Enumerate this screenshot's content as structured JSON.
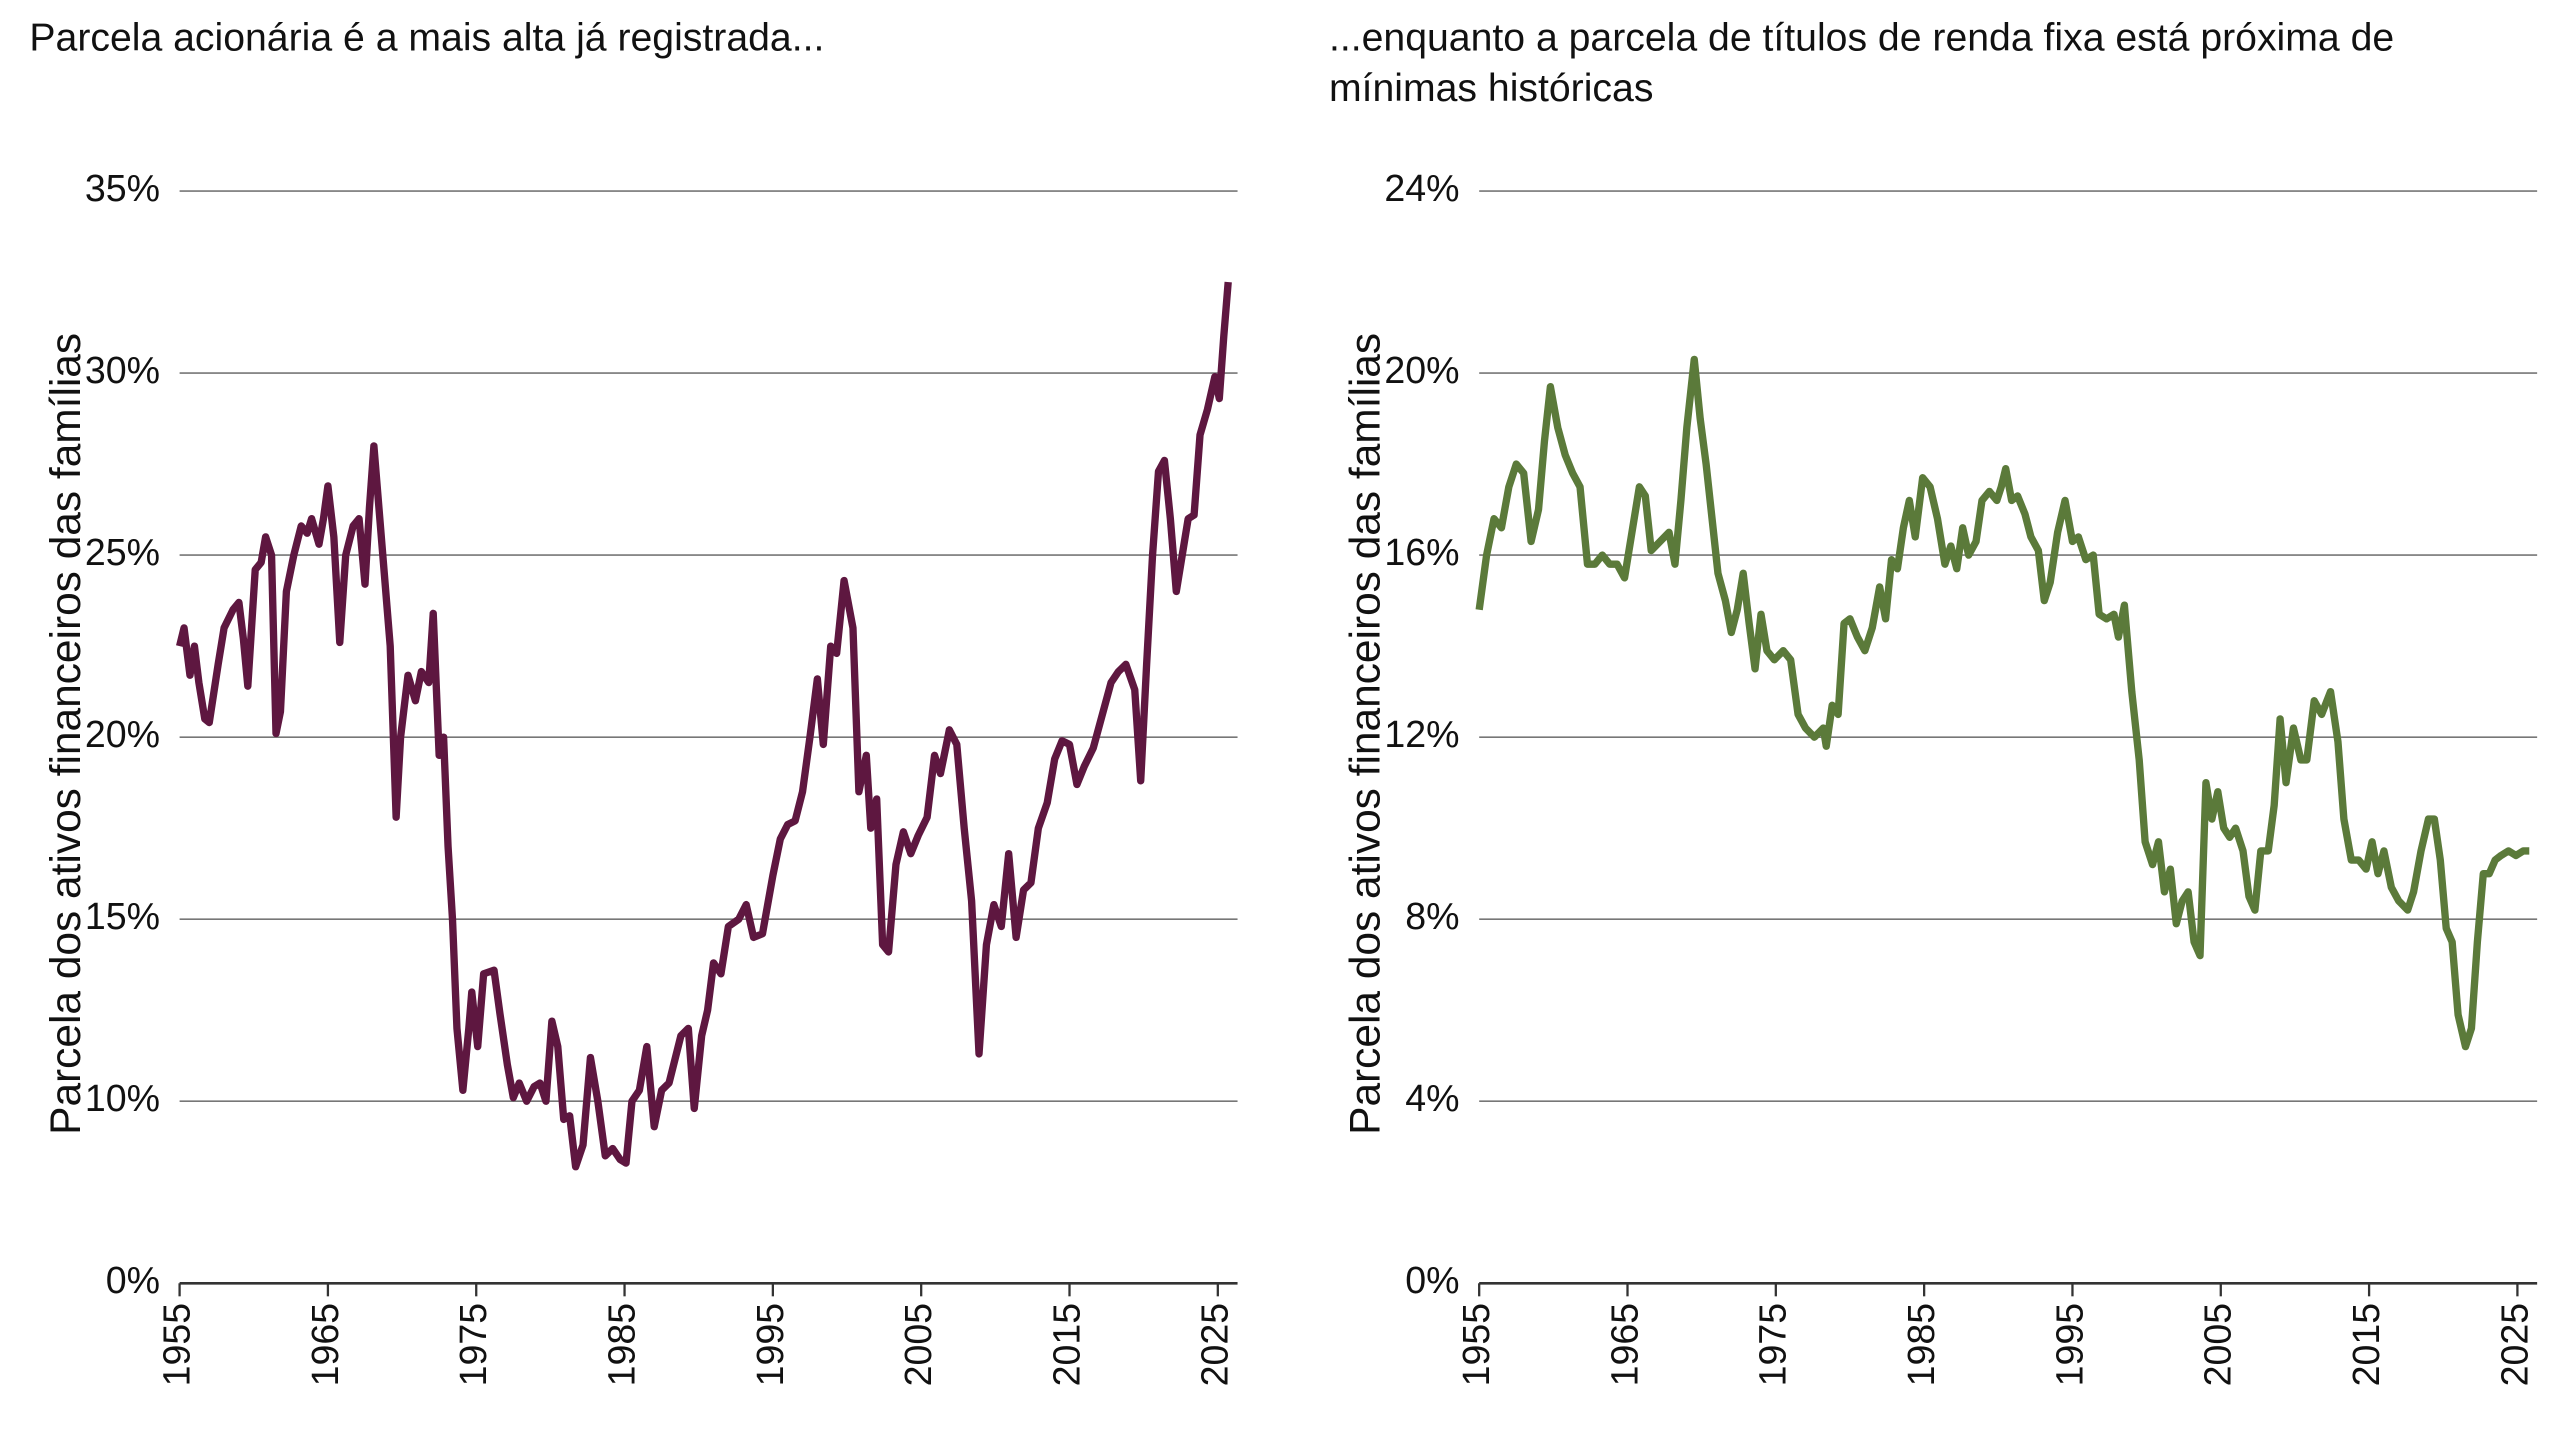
{
  "chart_data": [
    {
      "type": "line",
      "title": "Parcela acionária é a mais alta já registrada...",
      "y_label": "Parcela dos ativos financeiros das famílias",
      "xlim": [
        1955,
        2026
      ],
      "xticks": [
        1955,
        1965,
        1975,
        1985,
        1995,
        2005,
        2015,
        2025
      ],
      "ylim": [
        5,
        35
      ],
      "axis_break": true,
      "yticks": [
        {
          "value": 0,
          "label": "0%"
        },
        {
          "value": 10,
          "label": "10%"
        },
        {
          "value": 15,
          "label": "15%"
        },
        {
          "value": 20,
          "label": "20%"
        },
        {
          "value": 25,
          "label": "25%"
        },
        {
          "value": 30,
          "label": "30%"
        },
        {
          "value": 35,
          "label": "35%"
        }
      ],
      "grid": true,
      "series": [
        {
          "color": "#5e1740",
          "x": [
            1955.0,
            1955.3,
            1955.7,
            1956.0,
            1956.3,
            1956.7,
            1957.0,
            1957.6,
            1958.0,
            1958.6,
            1959.0,
            1959.3,
            1959.6,
            1960.1,
            1960.5,
            1960.8,
            1961.2,
            1961.5,
            1961.8,
            1962.2,
            1962.7,
            1963.2,
            1963.6,
            1963.9,
            1964.4,
            1964.7,
            1965.0,
            1965.4,
            1965.8,
            1966.2,
            1966.7,
            1967.1,
            1967.5,
            1967.8,
            1968.1,
            1968.5,
            1968.8,
            1969.2,
            1969.6,
            1969.9,
            1970.4,
            1970.9,
            1971.3,
            1971.8,
            1972.1,
            1972.5,
            1972.8,
            1973.1,
            1973.4,
            1973.7,
            1974.1,
            1974.5,
            1974.7,
            1975.1,
            1975.5,
            1976.2,
            1976.6,
            1977.1,
            1977.5,
            1977.9,
            1978.4,
            1978.9,
            1979.3,
            1979.7,
            1980.1,
            1980.5,
            1980.9,
            1981.3,
            1981.7,
            1982.2,
            1982.7,
            1983.2,
            1983.7,
            1984.2,
            1984.7,
            1985.1,
            1985.5,
            1986.0,
            1986.5,
            1987.0,
            1987.5,
            1988.0,
            1988.8,
            1989.3,
            1989.7,
            1990.2,
            1990.6,
            1991.0,
            1991.5,
            1992.0,
            1992.7,
            1993.2,
            1993.7,
            1994.3,
            1995.0,
            1995.5,
            1996.0,
            1996.5,
            1997.0,
            1997.5,
            1998.0,
            1998.4,
            1998.9,
            1999.3,
            1999.8,
            2000.4,
            2000.8,
            2001.3,
            2001.6,
            2002.0,
            2002.4,
            2002.8,
            2003.3,
            2003.8,
            2004.3,
            2004.8,
            2005.4,
            2005.9,
            2006.3,
            2006.9,
            2007.4,
            2007.9,
            2008.4,
            2008.9,
            2009.4,
            2009.9,
            2010.4,
            2010.9,
            2011.4,
            2011.9,
            2012.4,
            2012.9,
            2013.5,
            2014.0,
            2014.5,
            2015.0,
            2015.5,
            2016.0,
            2016.6,
            2017.2,
            2017.8,
            2018.3,
            2018.8,
            2019.4,
            2019.8,
            2020.2,
            2020.6,
            2021.0,
            2021.4,
            2021.8,
            2022.2,
            2022.6,
            2023.0,
            2023.4,
            2023.8,
            2024.3,
            2024.8,
            2025.1,
            2025.4,
            2025.7
          ],
          "values": [
            22.5,
            23.0,
            21.7,
            22.5,
            21.5,
            20.5,
            20.4,
            22.0,
            23.0,
            23.5,
            23.7,
            22.7,
            21.4,
            24.6,
            24.8,
            25.5,
            25.0,
            20.1,
            20.7,
            24.0,
            25.0,
            25.8,
            25.6,
            26.0,
            25.3,
            26.0,
            26.9,
            25.5,
            22.6,
            25.0,
            25.8,
            26.0,
            24.2,
            26.3,
            28.0,
            26.0,
            24.5,
            22.5,
            17.8,
            20.0,
            21.7,
            21.0,
            21.8,
            21.5,
            23.4,
            19.5,
            20.0,
            17.0,
            15.0,
            12.0,
            10.3,
            12.0,
            13.0,
            11.5,
            13.5,
            13.6,
            12.4,
            11.0,
            10.1,
            10.5,
            10.0,
            10.4,
            10.5,
            10.0,
            12.2,
            11.5,
            9.5,
            9.6,
            8.2,
            8.8,
            11.2,
            10.0,
            8.5,
            8.7,
            8.4,
            8.3,
            10.0,
            10.3,
            11.5,
            9.3,
            10.3,
            10.5,
            11.8,
            12.0,
            9.8,
            11.8,
            12.5,
            13.8,
            13.5,
            14.8,
            15.0,
            15.4,
            14.5,
            14.6,
            16.2,
            17.2,
            17.6,
            17.7,
            18.5,
            20.0,
            21.6,
            19.8,
            22.5,
            22.3,
            24.3,
            23.0,
            18.5,
            19.5,
            17.5,
            18.3,
            14.3,
            14.1,
            16.5,
            17.4,
            16.8,
            17.3,
            17.8,
            19.5,
            19.0,
            20.2,
            19.8,
            17.5,
            15.5,
            11.3,
            14.3,
            15.4,
            14.8,
            16.8,
            14.5,
            15.8,
            16.0,
            17.5,
            18.2,
            19.4,
            19.9,
            19.8,
            18.7,
            19.2,
            19.7,
            20.6,
            21.5,
            21.8,
            22.0,
            21.3,
            18.8,
            22.0,
            25.0,
            27.3,
            27.6,
            26.0,
            24.0,
            25.0,
            26.0,
            26.1,
            28.3,
            29.0,
            29.9,
            29.3,
            31.0,
            32.5
          ]
        }
      ]
    },
    {
      "type": "line",
      "title": "...enquanto a parcela de títulos de renda fixa está próxima de mínimas históricas",
      "y_label": "Parcela dos ativos financeiros das famílias",
      "xlim": [
        1955,
        2026
      ],
      "xticks": [
        1955,
        1965,
        1975,
        1985,
        1995,
        2005,
        2015,
        2025
      ],
      "ylim": [
        0,
        24
      ],
      "yticks": [
        {
          "value": 0,
          "label": "0%"
        },
        {
          "value": 4,
          "label": "4%"
        },
        {
          "value": 8,
          "label": "8%"
        },
        {
          "value": 12,
          "label": "12%"
        },
        {
          "value": 16,
          "label": "16%"
        },
        {
          "value": 20,
          "label": "20%"
        },
        {
          "value": 24,
          "label": "24%"
        }
      ],
      "grid": true,
      "series": [
        {
          "color": "#5b7a3a",
          "x": [
            1955.0,
            1955.5,
            1956.0,
            1956.5,
            1957.0,
            1957.5,
            1958.0,
            1958.5,
            1959.0,
            1959.4,
            1959.8,
            1960.3,
            1960.8,
            1961.3,
            1961.8,
            1962.3,
            1962.8,
            1963.3,
            1963.8,
            1964.3,
            1964.8,
            1965.3,
            1965.8,
            1966.2,
            1966.6,
            1967.2,
            1967.8,
            1968.2,
            1968.6,
            1969.0,
            1969.5,
            1969.9,
            1970.3,
            1970.7,
            1971.1,
            1971.6,
            1972.0,
            1972.4,
            1972.8,
            1973.2,
            1973.6,
            1974.0,
            1974.4,
            1974.9,
            1975.5,
            1976.0,
            1976.5,
            1977.0,
            1977.6,
            1978.2,
            1978.4,
            1978.8,
            1979.2,
            1979.6,
            1980.0,
            1980.5,
            1981.0,
            1981.5,
            1982.0,
            1982.4,
            1982.8,
            1983.2,
            1983.6,
            1984.0,
            1984.4,
            1984.9,
            1985.4,
            1985.9,
            1986.4,
            1986.8,
            1987.2,
            1987.6,
            1988.0,
            1988.5,
            1988.9,
            1989.4,
            1989.9,
            1990.2,
            1990.5,
            1990.9,
            1991.3,
            1991.8,
            1992.2,
            1992.7,
            1993.1,
            1993.5,
            1994.0,
            1994.5,
            1995.0,
            1995.4,
            1995.9,
            1996.4,
            1996.8,
            1997.3,
            1997.8,
            1998.1,
            1998.5,
            1999.0,
            1999.5,
            1999.9,
            2000.4,
            2000.8,
            2001.2,
            2001.6,
            2002.0,
            2002.4,
            2002.8,
            2003.2,
            2003.6,
            2004.0,
            2004.4,
            2004.8,
            2005.2,
            2005.6,
            2006.0,
            2006.5,
            2006.9,
            2007.3,
            2007.7,
            2008.2,
            2008.6,
            2009.0,
            2009.4,
            2009.9,
            2010.4,
            2010.8,
            2011.3,
            2011.8,
            2012.4,
            2012.9,
            2013.3,
            2013.8,
            2014.3,
            2014.8,
            2015.2,
            2015.6,
            2016.0,
            2016.5,
            2017.0,
            2017.6,
            2018.0,
            2018.5,
            2019.0,
            2019.4,
            2019.8,
            2020.2,
            2020.6,
            2021.0,
            2021.5,
            2021.9,
            2022.3,
            2022.7,
            2023.1,
            2023.5,
            2023.9,
            2024.4,
            2024.9,
            2025.4,
            2025.8
          ],
          "values": [
            14.8,
            16.0,
            16.8,
            16.6,
            17.5,
            18.0,
            17.8,
            16.3,
            17.0,
            18.5,
            19.7,
            18.8,
            18.2,
            17.8,
            17.5,
            15.8,
            15.8,
            16.0,
            15.8,
            15.8,
            15.5,
            16.5,
            17.5,
            17.3,
            16.1,
            16.3,
            16.5,
            15.8,
            17.2,
            18.8,
            20.3,
            19.0,
            18.0,
            16.8,
            15.6,
            15.0,
            14.3,
            14.8,
            15.6,
            14.5,
            13.5,
            14.7,
            13.9,
            13.7,
            13.9,
            13.7,
            12.5,
            12.2,
            12.0,
            12.2,
            11.8,
            12.7,
            12.5,
            14.5,
            14.6,
            14.2,
            13.9,
            14.4,
            15.3,
            14.6,
            15.9,
            15.7,
            16.6,
            17.2,
            16.4,
            17.7,
            17.5,
            16.8,
            15.8,
            16.2,
            15.7,
            16.6,
            16.0,
            16.3,
            17.2,
            17.4,
            17.2,
            17.5,
            17.9,
            17.2,
            17.3,
            16.9,
            16.4,
            16.1,
            15.0,
            15.4,
            16.5,
            17.2,
            16.3,
            16.4,
            15.9,
            16.0,
            14.7,
            14.6,
            14.7,
            14.2,
            14.9,
            13.0,
            11.5,
            9.7,
            9.2,
            9.7,
            8.6,
            9.1,
            7.9,
            8.4,
            8.6,
            7.5,
            7.2,
            11.0,
            10.2,
            10.8,
            10.0,
            9.8,
            10.0,
            9.5,
            8.5,
            8.2,
            9.5,
            9.5,
            10.5,
            12.4,
            11.0,
            12.2,
            11.5,
            11.5,
            12.8,
            12.5,
            13.0,
            11.9,
            10.2,
            9.3,
            9.3,
            9.1,
            9.7,
            9.0,
            9.5,
            8.7,
            8.4,
            8.2,
            8.6,
            9.5,
            10.2,
            10.2,
            9.3,
            7.8,
            7.5,
            5.9,
            5.2,
            5.6,
            7.5,
            9.0,
            9.0,
            9.3,
            9.4,
            9.5,
            9.4,
            9.5,
            9.5
          ]
        }
      ]
    }
  ]
}
